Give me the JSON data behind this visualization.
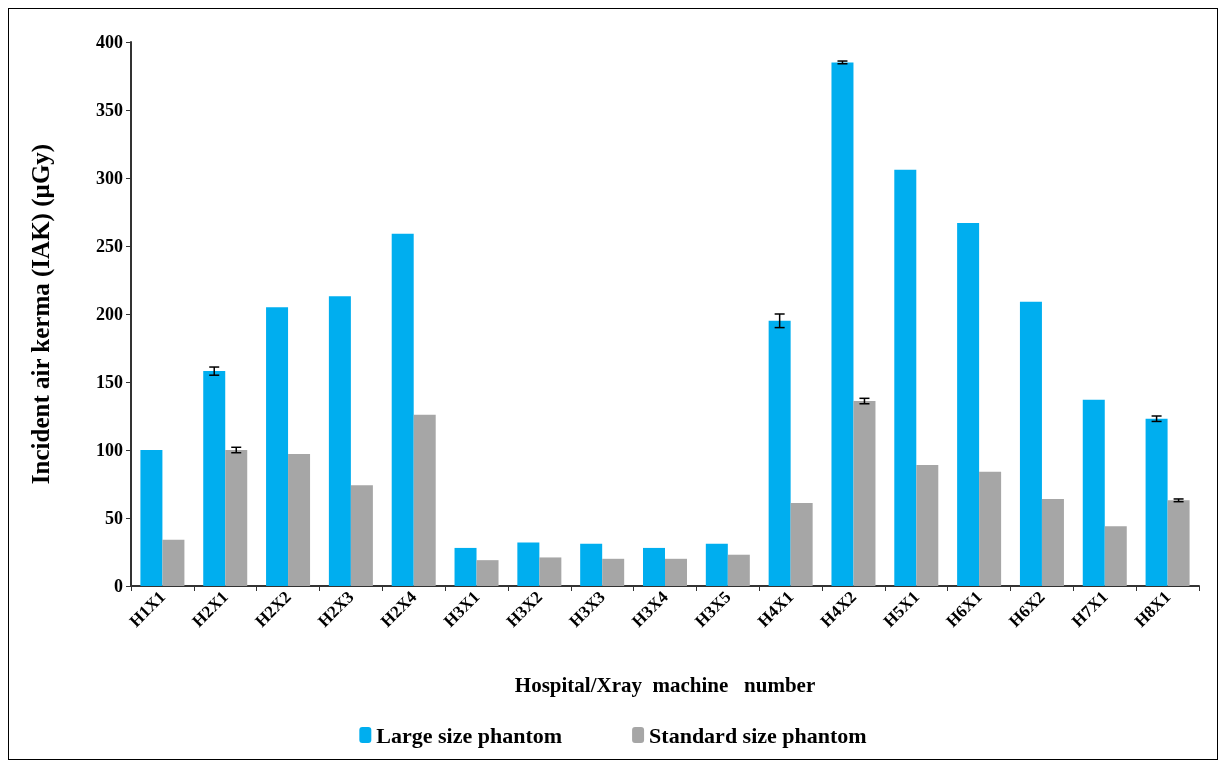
{
  "chart_data": {
    "type": "bar",
    "xlabel": "Hospital/Xray  machine   number",
    "ylabel": "Incident air kerma (IAK) (µGy)",
    "categories": [
      "H1X1",
      "H2X1",
      "H2X2",
      "H2X3",
      "H2X4",
      "H3X1",
      "H3X2",
      "H3X3",
      "H3X4",
      "H3X5",
      "H4X1",
      "H4X2",
      "H5X1",
      "H6X1",
      "H6X2",
      "H7X1",
      "H8X1"
    ],
    "series": [
      {
        "name": "Large size phantom",
        "color": "#00aeef",
        "values": [
          100,
          158,
          205,
          213,
          259,
          28,
          32,
          31,
          28,
          31,
          195,
          385,
          306,
          267,
          209,
          137,
          123
        ],
        "errors": [
          null,
          3,
          null,
          null,
          null,
          null,
          null,
          null,
          null,
          null,
          5,
          1,
          null,
          null,
          null,
          null,
          2
        ]
      },
      {
        "name": "Standard size phantom",
        "color": "#a6a6a6",
        "values": [
          34,
          100,
          97,
          74,
          126,
          19,
          21,
          20,
          20,
          23,
          61,
          136,
          89,
          84,
          64,
          44,
          63
        ],
        "errors": [
          null,
          2,
          null,
          null,
          null,
          null,
          null,
          null,
          null,
          null,
          null,
          2,
          null,
          null,
          null,
          null,
          1
        ]
      }
    ],
    "ylim": [
      0,
      400
    ],
    "yticks": [
      0,
      50,
      100,
      150,
      200,
      250,
      300,
      350,
      400
    ],
    "grid": false,
    "legend": "bottom"
  }
}
